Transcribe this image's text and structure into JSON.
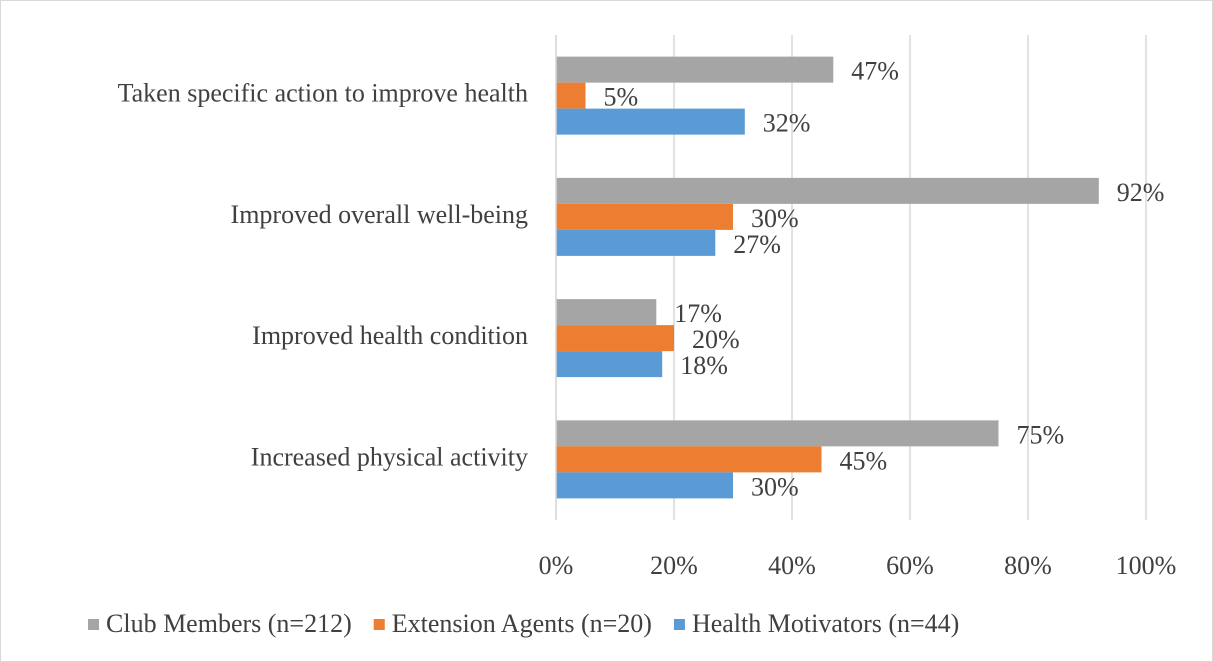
{
  "chart_data": {
    "type": "bar",
    "orientation": "horizontal",
    "categories": [
      "Taken specific action to improve health",
      "Improved overall well-being",
      "Improved health condition",
      "Increased physical activity"
    ],
    "series": [
      {
        "name": "Club Members (n=212)",
        "color": "#a5a5a5",
        "values": [
          47,
          92,
          17,
          75
        ],
        "value_labels": [
          "47%",
          "92%",
          "17%",
          "75%"
        ]
      },
      {
        "name": "Extension Agents (n=20)",
        "color": "#ed7d31",
        "values": [
          5,
          30,
          20,
          45
        ],
        "value_labels": [
          "5%",
          "30%",
          "20%",
          "45%"
        ]
      },
      {
        "name": "Health Motivators (n=44)",
        "color": "#5b9bd5",
        "values": [
          32,
          27,
          18,
          30
        ],
        "value_labels": [
          "32%",
          "27%",
          "18%",
          "30%"
        ]
      }
    ],
    "xlim": [
      0,
      100
    ],
    "xticks": [
      {
        "value": 0,
        "label": "0%"
      },
      {
        "value": 20,
        "label": "20%"
      },
      {
        "value": 40,
        "label": "40%"
      },
      {
        "value": 60,
        "label": "60%"
      },
      {
        "value": 80,
        "label": "80%"
      },
      {
        "value": 100,
        "label": "100%"
      }
    ],
    "grid": true,
    "legend": "bottom"
  }
}
